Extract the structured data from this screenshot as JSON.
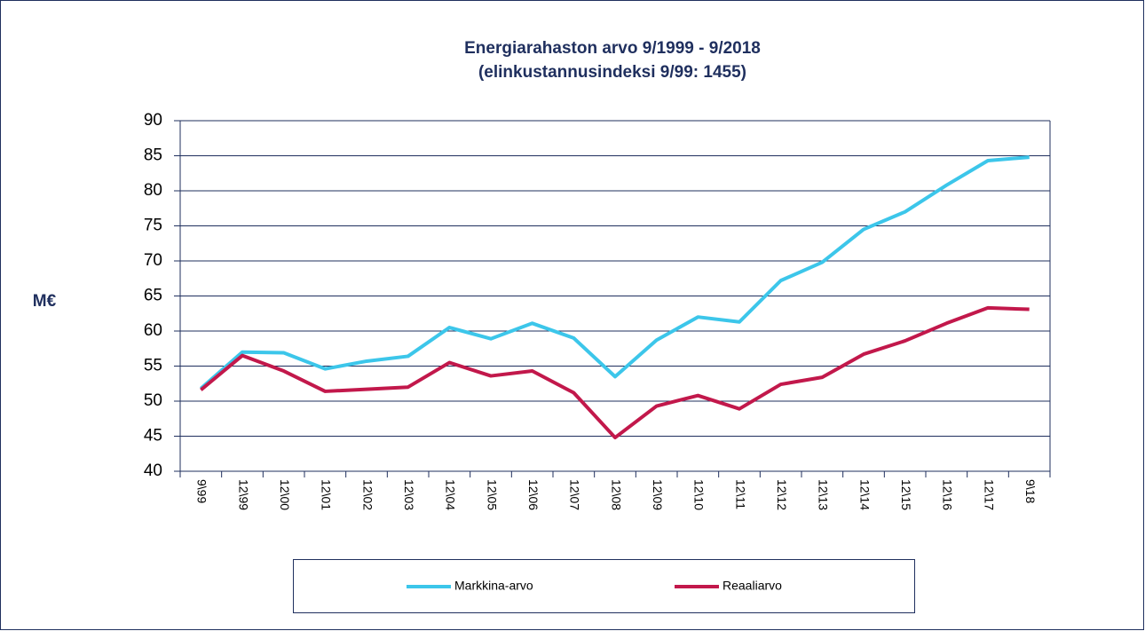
{
  "chart_data": {
    "type": "line",
    "title": "Energiarahaston arvo 9/1999 - 9/2018",
    "subtitle": "(elinkustannusindeksi 9/99: 1455)",
    "y_label": "M€",
    "categories": [
      "9\\99",
      "12\\99",
      "12\\00",
      "12\\01",
      "12\\02",
      "12\\03",
      "12\\04",
      "12\\05",
      "12\\06",
      "12\\07",
      "12\\08",
      "12\\09",
      "12\\10",
      "12\\11",
      "12\\12",
      "12\\13",
      "12\\14",
      "12\\15",
      "12\\16",
      "12\\17",
      "9\\18"
    ],
    "series": [
      {
        "name": "Markkina-arvo",
        "color": "#3cc6ea",
        "values": [
          51.8,
          57.0,
          56.9,
          54.6,
          55.7,
          56.4,
          60.5,
          58.9,
          61.1,
          59.0,
          53.5,
          58.7,
          62.0,
          61.3,
          67.2,
          69.8,
          74.5,
          77.0,
          80.8,
          84.3,
          84.8
        ]
      },
      {
        "name": "Reaaliarvo",
        "color": "#c2184b",
        "values": [
          51.6,
          56.5,
          54.3,
          51.4,
          51.7,
          52.0,
          55.5,
          53.6,
          54.3,
          51.2,
          44.8,
          49.3,
          50.8,
          48.9,
          52.4,
          53.4,
          56.7,
          58.6,
          61.1,
          63.3,
          63.1
        ]
      }
    ],
    "ylim": [
      40,
      90
    ],
    "yticks": [
      40,
      45,
      50,
      55,
      60,
      65,
      70,
      75,
      80,
      85,
      90
    ],
    "grid": true
  }
}
